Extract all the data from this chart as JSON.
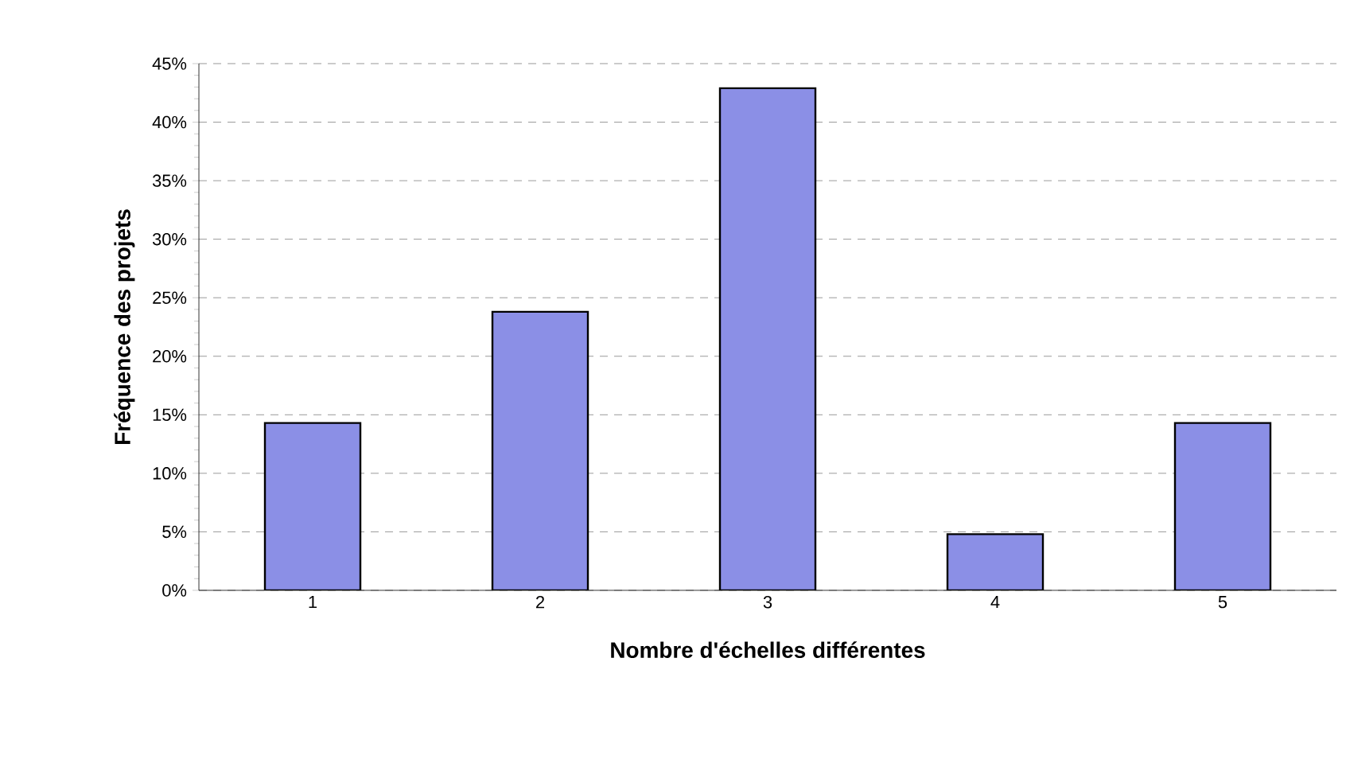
{
  "chart_data": {
    "type": "bar",
    "xlabel": "Nombre d'échelles différentes",
    "ylabel": "Fréquence des projets",
    "categories": [
      "1",
      "2",
      "3",
      "4",
      "5"
    ],
    "values": [
      14.3,
      23.8,
      42.9,
      4.8,
      14.3
    ],
    "color": "#8b8fe6",
    "ylim": [
      0,
      45
    ],
    "yticks": [
      {
        "value": 0,
        "label": "0%"
      },
      {
        "value": 5,
        "label": "5%"
      },
      {
        "value": 10,
        "label": "10%"
      },
      {
        "value": 15,
        "label": "15%"
      },
      {
        "value": 20,
        "label": "20%"
      },
      {
        "value": 25,
        "label": "25%"
      },
      {
        "value": 30,
        "label": "30%"
      },
      {
        "value": 35,
        "label": "35%"
      },
      {
        "value": 40,
        "label": "40%"
      },
      {
        "value": 45,
        "label": "45%"
      }
    ],
    "grid": "y"
  }
}
